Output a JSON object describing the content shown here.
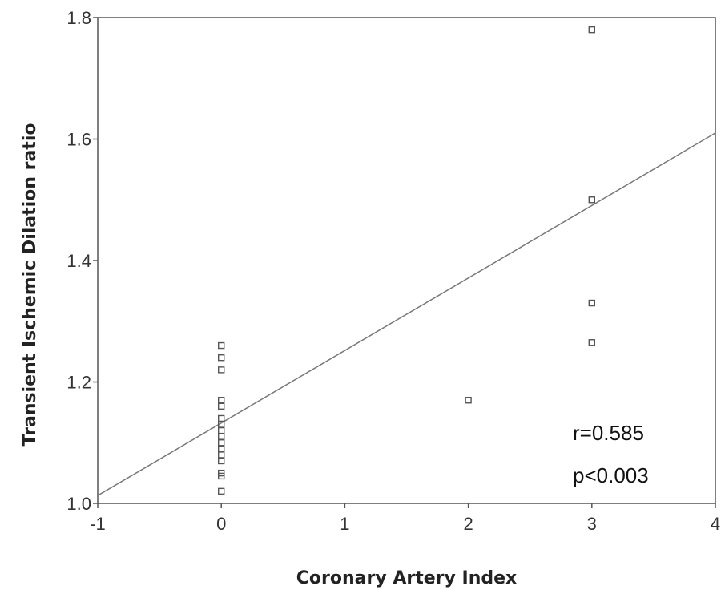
{
  "chart_data": {
    "type": "scatter",
    "title": "",
    "xlabel": "Coronary Artery Index",
    "ylabel": "Transient Ischemic Dilation ratio",
    "xlim": [
      -1,
      4
    ],
    "ylim": [
      1.0,
      1.8
    ],
    "xticks": [
      -1,
      0,
      1,
      2,
      3,
      4
    ],
    "xtick_labels": [
      "-1",
      "0",
      "1",
      "2",
      "3",
      "4"
    ],
    "yticks": [
      1.0,
      1.2,
      1.4,
      1.6,
      1.8
    ],
    "ytick_labels": [
      "1.0",
      "1.2",
      "1.4",
      "1.6",
      "1.8"
    ],
    "grid": false,
    "points": [
      {
        "x": 0,
        "y": 1.26
      },
      {
        "x": 0,
        "y": 1.24
      },
      {
        "x": 0,
        "y": 1.22
      },
      {
        "x": 0,
        "y": 1.17
      },
      {
        "x": 0,
        "y": 1.16
      },
      {
        "x": 0,
        "y": 1.14
      },
      {
        "x": 0,
        "y": 1.13
      },
      {
        "x": 0,
        "y": 1.12
      },
      {
        "x": 0,
        "y": 1.11
      },
      {
        "x": 0,
        "y": 1.1
      },
      {
        "x": 0,
        "y": 1.09
      },
      {
        "x": 0,
        "y": 1.08
      },
      {
        "x": 0,
        "y": 1.07
      },
      {
        "x": 0,
        "y": 1.05
      },
      {
        "x": 0,
        "y": 1.045
      },
      {
        "x": 0,
        "y": 1.02
      },
      {
        "x": 2,
        "y": 1.17
      },
      {
        "x": 3,
        "y": 1.78
      },
      {
        "x": 3,
        "y": 1.5
      },
      {
        "x": 3,
        "y": 1.33
      },
      {
        "x": 3,
        "y": 1.265
      }
    ],
    "trendline": {
      "x": [
        -1,
        4
      ],
      "y": [
        1.013,
        1.61
      ]
    },
    "annotations": [
      "r=0.585",
      "p<0.003"
    ]
  }
}
